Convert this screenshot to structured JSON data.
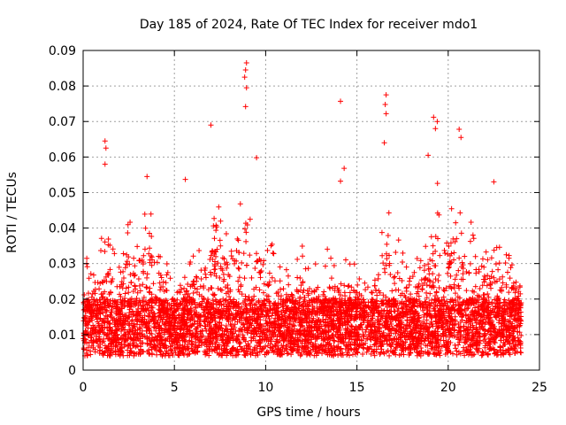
{
  "chart_data": {
    "type": "scatter",
    "title": "Day 185 of 2024, Rate Of TEC Index for receiver mdo1",
    "xlabel": "GPS time / hours",
    "ylabel": "ROTI / TECUs",
    "xlim": [
      0,
      25
    ],
    "ylim": [
      0,
      0.09
    ],
    "xticks": [
      0,
      5,
      10,
      15,
      20,
      25
    ],
    "xtick_labels": [
      "0",
      "5",
      "10",
      "15",
      "20",
      "25"
    ],
    "yticks": [
      0,
      0.01,
      0.02,
      0.03,
      0.04,
      0.05,
      0.06,
      0.07,
      0.08,
      0.09
    ],
    "ytick_labels": [
      "0",
      "0.01",
      "0.02",
      "0.03",
      "0.04",
      "0.05",
      "0.06",
      "0.07",
      "0.08",
      "0.09"
    ],
    "grid": true,
    "marker": "+",
    "series_color": "#ff0000",
    "density_profile": {
      "hours": [
        0,
        0.5,
        1,
        1.5,
        2,
        2.5,
        3,
        3.5,
        4,
        4.5,
        5,
        5.5,
        6,
        6.5,
        7,
        7.5,
        8,
        8.5,
        9,
        9.5,
        10,
        10.5,
        11,
        11.5,
        12,
        12.5,
        13,
        13.5,
        14,
        14.5,
        15,
        15.5,
        16,
        16.5,
        17,
        17.5,
        18,
        18.5,
        19,
        19.5,
        20,
        20.5,
        21,
        21.5,
        22,
        22.5,
        23,
        23.5,
        24
      ],
      "typical_upper_roti": [
        0.036,
        0.03,
        0.04,
        0.036,
        0.033,
        0.045,
        0.04,
        0.048,
        0.04,
        0.032,
        0.022,
        0.028,
        0.033,
        0.04,
        0.044,
        0.048,
        0.038,
        0.05,
        0.052,
        0.045,
        0.038,
        0.035,
        0.03,
        0.03,
        0.035,
        0.03,
        0.032,
        0.035,
        0.033,
        0.032,
        0.03,
        0.028,
        0.03,
        0.05,
        0.04,
        0.035,
        0.03,
        0.033,
        0.045,
        0.055,
        0.05,
        0.045,
        0.045,
        0.04,
        0.04,
        0.04,
        0.035,
        0.04,
        0.028
      ]
    },
    "outliers": [
      {
        "x": 1.2,
        "y": 0.0645
      },
      {
        "x": 1.25,
        "y": 0.0625
      },
      {
        "x": 1.2,
        "y": 0.058
      },
      {
        "x": 3.5,
        "y": 0.0545
      },
      {
        "x": 5.6,
        "y": 0.0537
      },
      {
        "x": 7.0,
        "y": 0.069
      },
      {
        "x": 8.95,
        "y": 0.0865
      },
      {
        "x": 8.9,
        "y": 0.0845
      },
      {
        "x": 8.85,
        "y": 0.0825
      },
      {
        "x": 8.95,
        "y": 0.0795
      },
      {
        "x": 8.9,
        "y": 0.0742
      },
      {
        "x": 9.5,
        "y": 0.0598
      },
      {
        "x": 14.1,
        "y": 0.0757
      },
      {
        "x": 14.1,
        "y": 0.0532
      },
      {
        "x": 14.3,
        "y": 0.0568
      },
      {
        "x": 16.6,
        "y": 0.0775
      },
      {
        "x": 16.55,
        "y": 0.0748
      },
      {
        "x": 16.6,
        "y": 0.0722
      },
      {
        "x": 16.5,
        "y": 0.064
      },
      {
        "x": 19.2,
        "y": 0.0712
      },
      {
        "x": 19.4,
        "y": 0.07
      },
      {
        "x": 19.3,
        "y": 0.068
      },
      {
        "x": 20.6,
        "y": 0.0678
      },
      {
        "x": 20.7,
        "y": 0.0655
      },
      {
        "x": 18.9,
        "y": 0.0605
      },
      {
        "x": 22.5,
        "y": 0.053
      }
    ]
  }
}
